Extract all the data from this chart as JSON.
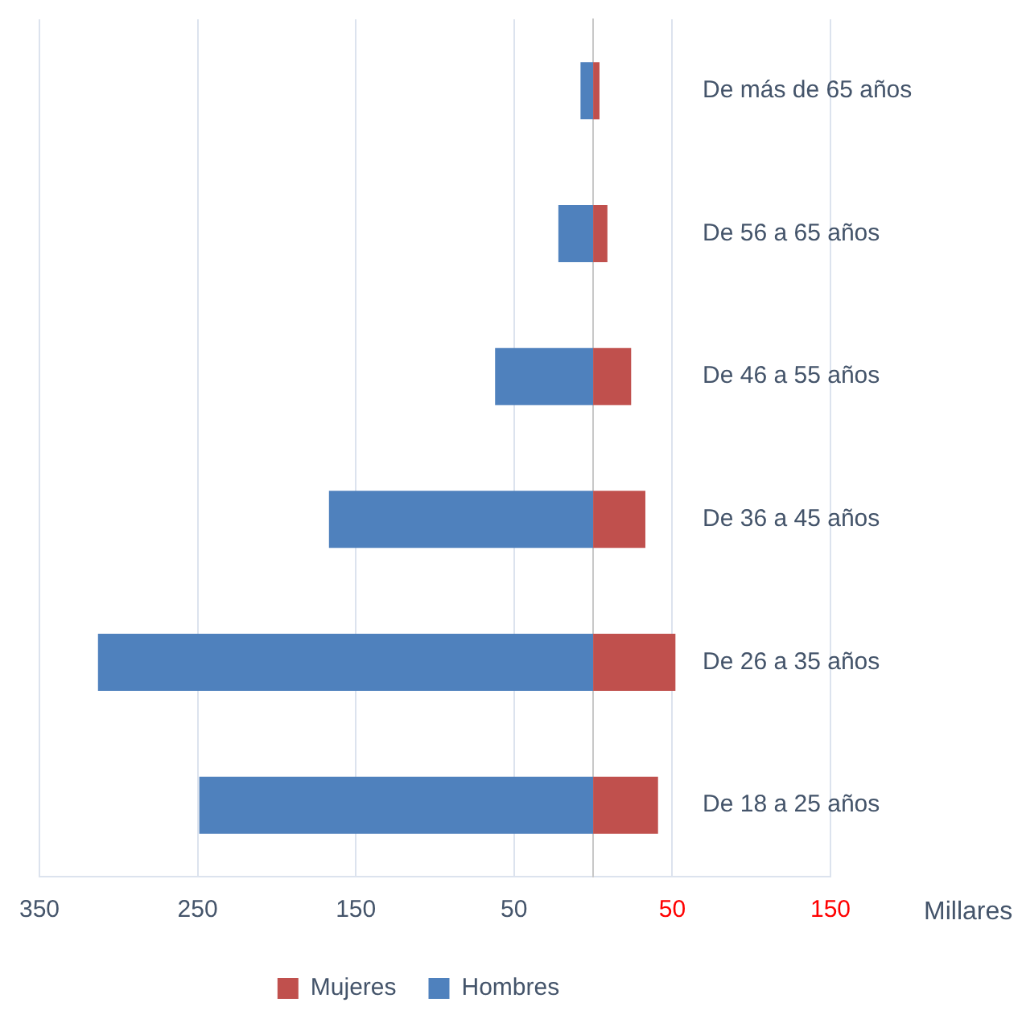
{
  "chart_data": {
    "type": "bar",
    "orientation": "horizontal",
    "stacked": true,
    "xlabel": "Millares",
    "categories": [
      "De más de 65 años",
      "De 56 a 65 años",
      "De 46 a 55 años",
      "De 36 a 45 años",
      "De 26 a 35 años",
      "De 18 a 25 años"
    ],
    "series": [
      {
        "name": "Mujeres",
        "color": "#c0504d",
        "values": [
          4,
          9,
          24,
          33,
          52,
          41
        ]
      },
      {
        "name": "Hombres",
        "color": "#4f81bd",
        "values": [
          -8,
          -22,
          -62,
          -167,
          -313,
          -249
        ]
      }
    ],
    "xlim": [
      -350,
      150
    ],
    "xticks": [
      {
        "value": -350,
        "label": "350"
      },
      {
        "value": -250,
        "label": "250"
      },
      {
        "value": -150,
        "label": "150"
      },
      {
        "value": -50,
        "label": "50"
      },
      50,
      150
    ],
    "grid": "x",
    "legend": "bottom"
  }
}
